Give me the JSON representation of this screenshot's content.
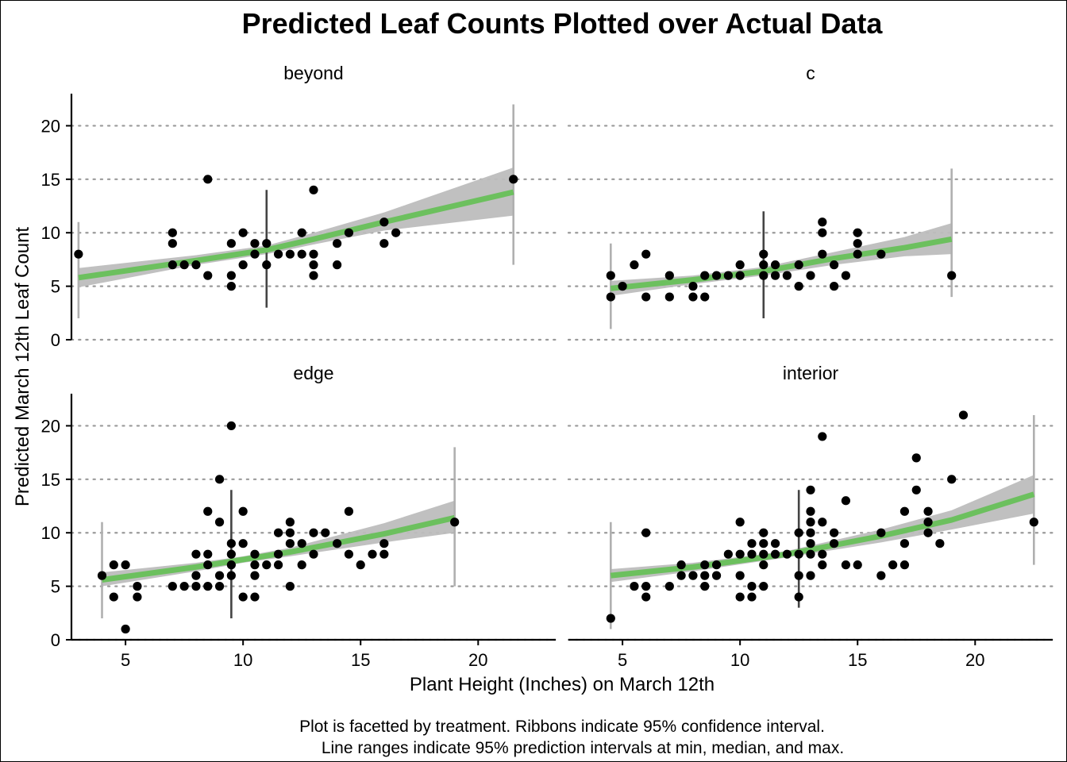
{
  "chart_data": {
    "type": "scatter",
    "title": "Predicted Leaf Counts Plotted over Actual Data",
    "xlabel": "Plant Height (Inches) on March 12th",
    "ylabel": "Predicted March 12th Leaf Count",
    "caption_lines": [
      "Plot is facetted by treatment. Ribbons indicate 95% confidence interval.",
      "Line ranges indicate 95% prediction intervals at min, median, and max."
    ],
    "x_ticks": [
      5,
      10,
      15,
      20
    ],
    "y_ticks": [
      0,
      5,
      10,
      15,
      20
    ],
    "y_grid": "dotted",
    "colors": {
      "fit_line": "#6cc05e",
      "ribbon": "#bdbdbd",
      "points": "#000000",
      "pi_min_max": "#b0b0b0",
      "pi_median": "#444444"
    },
    "panels": [
      {
        "label": "beyond",
        "xlim": [
          2.7,
          23.3
        ],
        "ylim": [
          0,
          23
        ],
        "fit": [
          [
            3,
            5.8
          ],
          [
            8,
            7.4
          ],
          [
            11,
            8.4
          ],
          [
            13,
            9.4
          ],
          [
            16,
            11
          ],
          [
            21.5,
            13.8
          ]
        ],
        "ribbon_lower": [
          [
            3,
            4.9
          ],
          [
            8,
            7.0
          ],
          [
            11,
            8.0
          ],
          [
            13,
            8.9
          ],
          [
            16,
            10.2
          ],
          [
            21.5,
            11.6
          ]
        ],
        "ribbon_upper": [
          [
            3,
            6.7
          ],
          [
            8,
            7.9
          ],
          [
            11,
            8.8
          ],
          [
            13,
            10.0
          ],
          [
            16,
            11.9
          ],
          [
            21.5,
            16.1
          ]
        ],
        "intervals": [
          {
            "x": 3,
            "low": 2,
            "high": 11,
            "kind": "min"
          },
          {
            "x": 11,
            "low": 3,
            "high": 14,
            "kind": "median"
          },
          {
            "x": 21.5,
            "low": 7,
            "high": 22,
            "kind": "max"
          }
        ],
        "points": [
          [
            3,
            8
          ],
          [
            7,
            10
          ],
          [
            7,
            9
          ],
          [
            7,
            7
          ],
          [
            7.5,
            7
          ],
          [
            8,
            7
          ],
          [
            8.5,
            15
          ],
          [
            8.5,
            6
          ],
          [
            9.5,
            9
          ],
          [
            9.5,
            6
          ],
          [
            9.5,
            5
          ],
          [
            10,
            10
          ],
          [
            10,
            7
          ],
          [
            10.5,
            9
          ],
          [
            10.5,
            8
          ],
          [
            11,
            9
          ],
          [
            11,
            7
          ],
          [
            11.5,
            8
          ],
          [
            12,
            8
          ],
          [
            12.5,
            10
          ],
          [
            12.5,
            8
          ],
          [
            13,
            14
          ],
          [
            13,
            8
          ],
          [
            13,
            7
          ],
          [
            13,
            6
          ],
          [
            14,
            9
          ],
          [
            14,
            7
          ],
          [
            14.5,
            10
          ],
          [
            16,
            11
          ],
          [
            16,
            9
          ],
          [
            16.5,
            10
          ],
          [
            21.5,
            15
          ]
        ]
      },
      {
        "label": "c",
        "xlim": [
          2.7,
          23.3
        ],
        "ylim": [
          0,
          23
        ],
        "fit": [
          [
            4.5,
            4.8
          ],
          [
            8,
            5.6
          ],
          [
            11,
            6.4
          ],
          [
            14,
            7.6
          ],
          [
            17,
            8.6
          ],
          [
            19,
            9.4
          ]
        ],
        "ribbon_lower": [
          [
            4.5,
            4.1
          ],
          [
            8,
            5.2
          ],
          [
            11,
            6.0
          ],
          [
            14,
            7.0
          ],
          [
            17,
            7.8
          ],
          [
            19,
            8.0
          ]
        ],
        "ribbon_upper": [
          [
            4.5,
            5.5
          ],
          [
            8,
            6.0
          ],
          [
            11,
            6.8
          ],
          [
            14,
            8.2
          ],
          [
            17,
            9.6
          ],
          [
            19,
            10.9
          ]
        ],
        "intervals": [
          {
            "x": 4.5,
            "low": 1,
            "high": 9,
            "kind": "min"
          },
          {
            "x": 11,
            "low": 2,
            "high": 12,
            "kind": "median"
          },
          {
            "x": 19,
            "low": 4,
            "high": 16,
            "kind": "max"
          }
        ],
        "points": [
          [
            4.5,
            6
          ],
          [
            4.5,
            4
          ],
          [
            5,
            5
          ],
          [
            5.5,
            7
          ],
          [
            6,
            8
          ],
          [
            6,
            4
          ],
          [
            7,
            6
          ],
          [
            7,
            4
          ],
          [
            8,
            5
          ],
          [
            8,
            4
          ],
          [
            8.5,
            6
          ],
          [
            8.5,
            4
          ],
          [
            9,
            6
          ],
          [
            9.5,
            6
          ],
          [
            10,
            7
          ],
          [
            10,
            6
          ],
          [
            11,
            8
          ],
          [
            11,
            7
          ],
          [
            11,
            6
          ],
          [
            11.5,
            7
          ],
          [
            11.5,
            6
          ],
          [
            12,
            6
          ],
          [
            12.5,
            7
          ],
          [
            12.5,
            5
          ],
          [
            13,
            6
          ],
          [
            13.5,
            11
          ],
          [
            13.5,
            10
          ],
          [
            13.5,
            8
          ],
          [
            14,
            7
          ],
          [
            14,
            5
          ],
          [
            14.5,
            6
          ],
          [
            15,
            10
          ],
          [
            15,
            9
          ],
          [
            15,
            8
          ],
          [
            16,
            8
          ],
          [
            19,
            6
          ]
        ]
      },
      {
        "label": "edge",
        "xlim": [
          2.7,
          23.3
        ],
        "ylim": [
          0,
          23
        ],
        "fit": [
          [
            4,
            5.6
          ],
          [
            8,
            6.8
          ],
          [
            10,
            7.5
          ],
          [
            12,
            8.2
          ],
          [
            16,
            9.9
          ],
          [
            19,
            11.4
          ]
        ],
        "ribbon_lower": [
          [
            4,
            5.0
          ],
          [
            8,
            6.4
          ],
          [
            10,
            7.2
          ],
          [
            12,
            7.8
          ],
          [
            16,
            9.1
          ],
          [
            19,
            10.0
          ]
        ],
        "ribbon_upper": [
          [
            4,
            6.3
          ],
          [
            8,
            7.2
          ],
          [
            10,
            7.8
          ],
          [
            12,
            8.6
          ],
          [
            16,
            10.9
          ],
          [
            19,
            13.0
          ]
        ],
        "intervals": [
          {
            "x": 4,
            "low": 2,
            "high": 11,
            "kind": "min"
          },
          {
            "x": 9.5,
            "low": 2,
            "high": 14,
            "kind": "median"
          },
          {
            "x": 19,
            "low": 5,
            "high": 18,
            "kind": "max"
          }
        ],
        "points": [
          [
            4,
            6
          ],
          [
            4.5,
            7
          ],
          [
            4.5,
            4
          ],
          [
            5,
            7
          ],
          [
            5,
            1
          ],
          [
            5.5,
            5
          ],
          [
            5.5,
            4
          ],
          [
            7,
            5
          ],
          [
            7.5,
            5
          ],
          [
            8,
            8
          ],
          [
            8,
            6
          ],
          [
            8,
            5
          ],
          [
            8.5,
            12
          ],
          [
            8.5,
            8
          ],
          [
            8.5,
            7
          ],
          [
            8.5,
            5
          ],
          [
            9,
            15
          ],
          [
            9,
            11
          ],
          [
            9,
            6
          ],
          [
            9,
            5
          ],
          [
            9.5,
            20
          ],
          [
            9.5,
            9
          ],
          [
            9.5,
            8
          ],
          [
            9.5,
            7
          ],
          [
            9.5,
            6
          ],
          [
            10,
            12
          ],
          [
            10,
            9
          ],
          [
            10,
            4
          ],
          [
            10.5,
            8
          ],
          [
            10.5,
            7
          ],
          [
            10.5,
            6
          ],
          [
            10.5,
            4
          ],
          [
            11,
            7
          ],
          [
            11.5,
            10
          ],
          [
            11.5,
            8
          ],
          [
            11.5,
            7
          ],
          [
            12,
            11
          ],
          [
            12,
            10
          ],
          [
            12,
            9
          ],
          [
            12,
            5
          ],
          [
            12.5,
            9
          ],
          [
            12.5,
            7
          ],
          [
            13,
            10
          ],
          [
            13,
            8
          ],
          [
            13.5,
            10
          ],
          [
            14,
            9
          ],
          [
            14.5,
            12
          ],
          [
            14.5,
            8
          ],
          [
            15,
            7
          ],
          [
            15.5,
            8
          ],
          [
            16,
            9
          ],
          [
            16,
            8
          ],
          [
            19,
            11
          ]
        ]
      },
      {
        "label": "interior",
        "xlim": [
          2.7,
          23.3
        ],
        "ylim": [
          0,
          23
        ],
        "fit": [
          [
            4.5,
            6.0
          ],
          [
            8,
            6.8
          ],
          [
            12,
            8.0
          ],
          [
            16,
            9.7
          ],
          [
            19,
            11.2
          ],
          [
            22.5,
            13.6
          ]
        ],
        "ribbon_lower": [
          [
            4.5,
            5.4
          ],
          [
            8,
            6.4
          ],
          [
            12,
            7.7
          ],
          [
            16,
            9.1
          ],
          [
            19,
            10.3
          ],
          [
            22.5,
            11.8
          ]
        ],
        "ribbon_upper": [
          [
            4.5,
            6.6
          ],
          [
            8,
            7.2
          ],
          [
            12,
            8.3
          ],
          [
            16,
            10.3
          ],
          [
            19,
            12.1
          ],
          [
            22.5,
            15.4
          ]
        ],
        "intervals": [
          {
            "x": 4.5,
            "low": 1,
            "high": 11,
            "kind": "min"
          },
          {
            "x": 12.5,
            "low": 3,
            "high": 14,
            "kind": "median"
          },
          {
            "x": 22.5,
            "low": 7,
            "high": 21,
            "kind": "max"
          }
        ],
        "points": [
          [
            4.5,
            2
          ],
          [
            5.5,
            5
          ],
          [
            6,
            10
          ],
          [
            6,
            5
          ],
          [
            6,
            4
          ],
          [
            7,
            5
          ],
          [
            7.5,
            7
          ],
          [
            7.5,
            6
          ],
          [
            8,
            6
          ],
          [
            8.5,
            7
          ],
          [
            8.5,
            6
          ],
          [
            8.5,
            5
          ],
          [
            9,
            7
          ],
          [
            9,
            6
          ],
          [
            9.5,
            8
          ],
          [
            10,
            11
          ],
          [
            10,
            8
          ],
          [
            10,
            6
          ],
          [
            10,
            4
          ],
          [
            10.5,
            9
          ],
          [
            10.5,
            8
          ],
          [
            10.5,
            5
          ],
          [
            10.5,
            4
          ],
          [
            11,
            10
          ],
          [
            11,
            9
          ],
          [
            11,
            8
          ],
          [
            11,
            7
          ],
          [
            11,
            5
          ],
          [
            11.5,
            9
          ],
          [
            11.5,
            8
          ],
          [
            12,
            8
          ],
          [
            12.5,
            10
          ],
          [
            12.5,
            8
          ],
          [
            12.5,
            6
          ],
          [
            12.5,
            4
          ],
          [
            13,
            14
          ],
          [
            13,
            12
          ],
          [
            13,
            11
          ],
          [
            13,
            10
          ],
          [
            13,
            9
          ],
          [
            13,
            8
          ],
          [
            13,
            6
          ],
          [
            13.5,
            19
          ],
          [
            13.5,
            11
          ],
          [
            13.5,
            8
          ],
          [
            13.5,
            7
          ],
          [
            14,
            10
          ],
          [
            14,
            9
          ],
          [
            14.5,
            13
          ],
          [
            14.5,
            7
          ],
          [
            15,
            7
          ],
          [
            16,
            10
          ],
          [
            16,
            6
          ],
          [
            16.5,
            7
          ],
          [
            17,
            12
          ],
          [
            17,
            9
          ],
          [
            17,
            7
          ],
          [
            17.5,
            17
          ],
          [
            17.5,
            14
          ],
          [
            18,
            12
          ],
          [
            18,
            11
          ],
          [
            18,
            10
          ],
          [
            18.5,
            9
          ],
          [
            19,
            15
          ],
          [
            19.5,
            21
          ],
          [
            22.5,
            11
          ]
        ]
      }
    ]
  }
}
